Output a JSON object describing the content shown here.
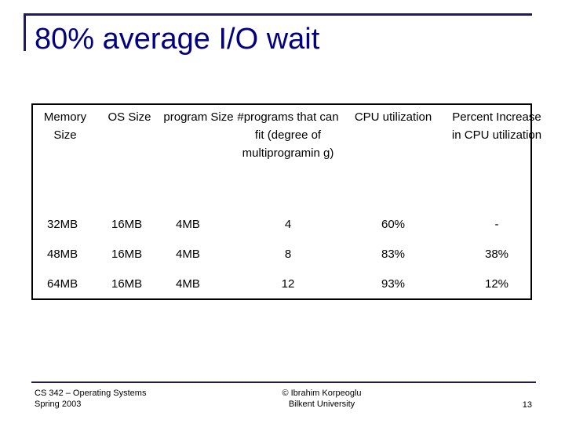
{
  "slide": {
    "title": "80% average I/O wait",
    "page_number": "13",
    "accent_color": "#000080"
  },
  "table": {
    "headers": [
      "Memory Size",
      "OS Size",
      "program Size",
      "#programs that can fit (degree of multiprogramin g)",
      "CPU utilization",
      "Percent Increase in CPU utilization"
    ],
    "rows": [
      [
        "32MB",
        "16MB",
        "4MB",
        "4",
        "60%",
        "-"
      ],
      [
        "48MB",
        "16MB",
        "4MB",
        "8",
        "83%",
        "38%"
      ],
      [
        "64MB",
        "16MB",
        "4MB",
        "12",
        "93%",
        "12%"
      ]
    ]
  },
  "footer": {
    "course_line1": "CS 342 – Operating Systems",
    "course_line2": "Spring 2003",
    "author_line1": "© Ibrahim Korpeoglu",
    "author_line2": "Bilkent University"
  }
}
